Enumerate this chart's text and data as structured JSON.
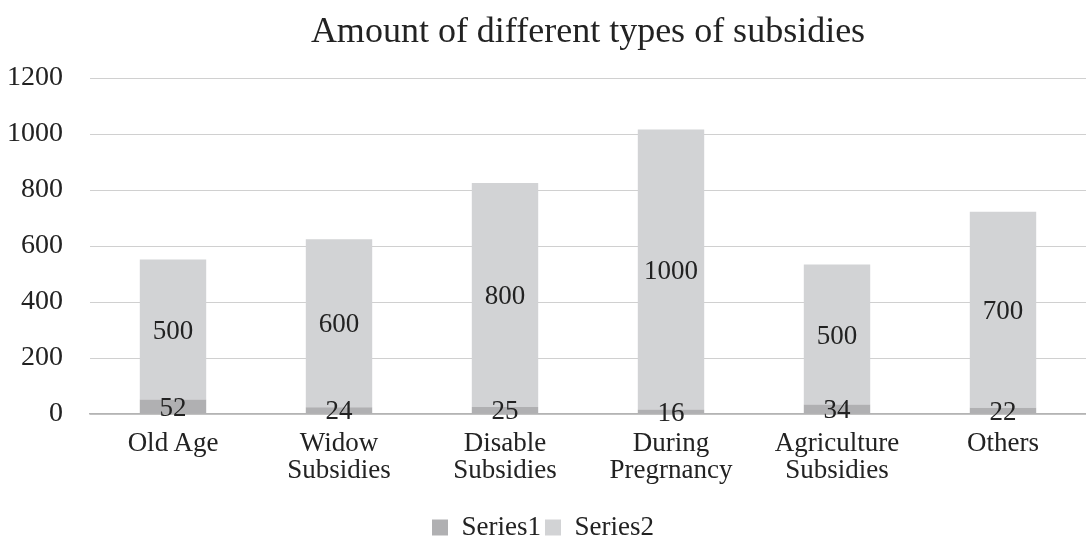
{
  "chart_data": {
    "type": "bar",
    "title": "Amount of different types of subsidies",
    "categories": [
      "Old Age",
      "Widow Subsidies",
      "Disable Subsidies",
      "During Pregrnancy",
      "Agriculture Subsidies",
      "Others"
    ],
    "series": [
      {
        "name": "Series1",
        "color": "#b0b0b2",
        "values": [
          52,
          24,
          25,
          16,
          34,
          22
        ]
      },
      {
        "name": "Series2",
        "color": "#d2d3d5",
        "values": [
          500,
          600,
          800,
          1000,
          500,
          700
        ]
      }
    ],
    "stacked": true,
    "ylim": [
      0,
      1200
    ],
    "yticks": [
      0,
      200,
      400,
      600,
      800,
      1000,
      1200
    ],
    "grid": "y",
    "legend": "bottom",
    "data_labels": true
  }
}
